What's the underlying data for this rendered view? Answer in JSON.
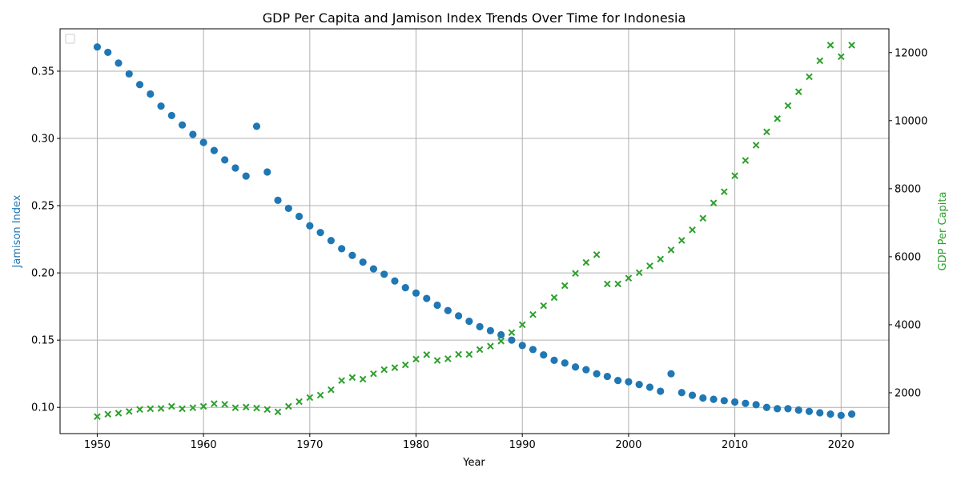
{
  "chart_data": {
    "type": "scatter",
    "title": "GDP Per Capita and Jamison Index Trends Over Time for Indonesia",
    "xlabel": "Year",
    "ylabel_left": "Jamison Index",
    "ylabel_right": "GDP Per Capita",
    "xlim": [
      1946.5,
      2024.5
    ],
    "ylim_left": [
      0.0805,
      0.3815
    ],
    "ylim_right": [
      800,
      12700
    ],
    "x_ticks": [
      1950,
      1960,
      1970,
      1980,
      1990,
      2000,
      2010,
      2020
    ],
    "y_left_ticks": [
      0.1,
      0.15,
      0.2,
      0.25,
      0.3,
      0.35
    ],
    "y_left_tick_labels": [
      "0.10",
      "0.15",
      "0.20",
      "0.25",
      "0.30",
      "0.35"
    ],
    "y_right_ticks": [
      2000,
      4000,
      6000,
      8000,
      10000,
      12000
    ],
    "y_right_tick_labels": [
      "2000",
      "4000",
      "6000",
      "8000",
      "10000",
      "12000"
    ],
    "grid": true,
    "legend": "upper-left (empty)",
    "colors": {
      "jamison": "#1f77b4",
      "gdp": "#2ca02c"
    },
    "series": [
      {
        "axis": "left",
        "marker": "circle",
        "x": [
          1950,
          1951,
          1952,
          1953,
          1954,
          1955,
          1956,
          1957,
          1958,
          1959,
          1960,
          1961,
          1962,
          1963,
          1964,
          1965,
          1966,
          1967,
          1968,
          1969,
          1970,
          1971,
          1972,
          1973,
          1974,
          1975,
          1976,
          1977,
          1978,
          1979,
          1980,
          1981,
          1982,
          1983,
          1984,
          1985,
          1986,
          1987,
          1988,
          1989,
          1990,
          1991,
          1992,
          1993,
          1994,
          1995,
          1996,
          1997,
          1998,
          1999,
          2000,
          2001,
          2002,
          2003,
          2004,
          2005,
          2006,
          2007,
          2008,
          2009,
          2010,
          2011,
          2012,
          2013,
          2014,
          2015,
          2016,
          2017,
          2018,
          2019,
          2020,
          2021
        ],
        "values": [
          0.368,
          0.364,
          0.356,
          0.348,
          0.34,
          0.333,
          0.324,
          0.317,
          0.31,
          0.303,
          0.297,
          0.291,
          0.284,
          0.278,
          0.272,
          0.309,
          0.275,
          0.254,
          0.248,
          0.242,
          0.235,
          0.23,
          0.224,
          0.218,
          0.213,
          0.208,
          0.203,
          0.199,
          0.194,
          0.189,
          0.185,
          0.181,
          0.176,
          0.172,
          0.168,
          0.164,
          0.16,
          0.157,
          0.154,
          0.15,
          0.146,
          0.143,
          0.139,
          0.135,
          0.133,
          0.13,
          0.128,
          0.125,
          0.123,
          0.12,
          0.119,
          0.117,
          0.115,
          0.112,
          0.125,
          0.111,
          0.109,
          0.107,
          0.106,
          0.105,
          0.104,
          0.103,
          0.102,
          0.1,
          0.099,
          0.099,
          0.098,
          0.097,
          0.096,
          0.095,
          0.094,
          0.095
        ]
      },
      {
        "axis": "right",
        "marker": "x",
        "x": [
          1950,
          1951,
          1952,
          1953,
          1954,
          1955,
          1956,
          1957,
          1958,
          1959,
          1960,
          1961,
          1962,
          1963,
          1964,
          1965,
          1966,
          1967,
          1968,
          1969,
          1970,
          1971,
          1972,
          1973,
          1974,
          1975,
          1976,
          1977,
          1978,
          1979,
          1980,
          1981,
          1982,
          1983,
          1984,
          1985,
          1986,
          1987,
          1988,
          1989,
          1990,
          1991,
          1992,
          1993,
          1994,
          1995,
          1996,
          1997,
          1998,
          1999,
          2000,
          2001,
          2002,
          2003,
          2004,
          2005,
          2006,
          2007,
          2008,
          2009,
          2010,
          2011,
          2012,
          2013,
          2014,
          2015,
          2016,
          2017,
          2018,
          2019,
          2020,
          2021
        ],
        "values": [
          1300,
          1370,
          1400,
          1450,
          1510,
          1530,
          1540,
          1600,
          1530,
          1560,
          1600,
          1680,
          1660,
          1560,
          1580,
          1550,
          1510,
          1440,
          1600,
          1740,
          1860,
          1930,
          2090,
          2360,
          2450,
          2400,
          2560,
          2680,
          2740,
          2820,
          2990,
          3120,
          2950,
          3000,
          3130,
          3130,
          3270,
          3370,
          3520,
          3770,
          4000,
          4300,
          4560,
          4800,
          5150,
          5510,
          5830,
          6060,
          5200,
          5200,
          5370,
          5530,
          5730,
          5930,
          6200,
          6480,
          6790,
          7130,
          7580,
          7910,
          8380,
          8830,
          9280,
          9670,
          10060,
          10440,
          10850,
          11290,
          11760,
          12220,
          11880,
          12220
        ]
      }
    ]
  }
}
